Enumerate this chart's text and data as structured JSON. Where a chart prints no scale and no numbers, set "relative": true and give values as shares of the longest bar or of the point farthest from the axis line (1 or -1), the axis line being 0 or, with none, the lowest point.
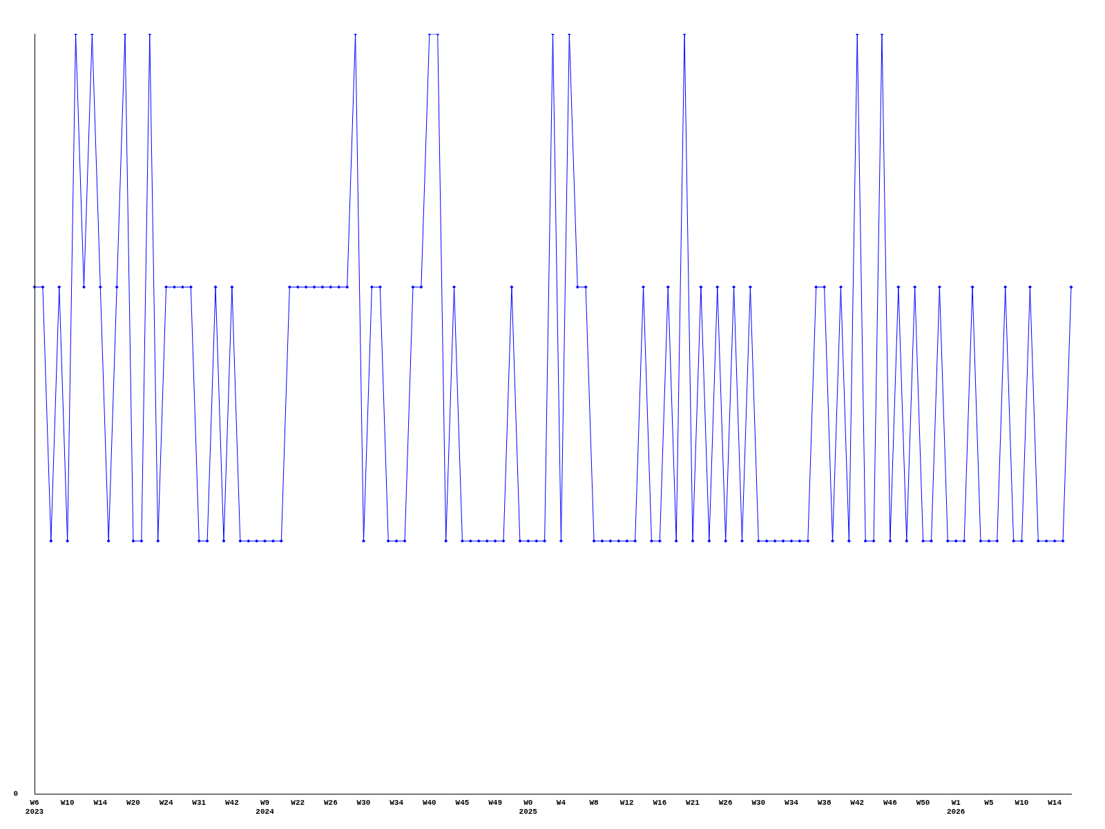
{
  "chart_data": {
    "type": "line",
    "relative": true,
    "color": "#0000ff",
    "marker": "diamond",
    "grid": false,
    "legend": false,
    "annotations": [
      "0"
    ],
    "categories": [
      "W6\n2023",
      null,
      null,
      null,
      "W10",
      null,
      null,
      null,
      "W14",
      null,
      null,
      null,
      "W20",
      null,
      null,
      null,
      "W24",
      null,
      null,
      null,
      "W31",
      null,
      null,
      null,
      "W42",
      null,
      null,
      null,
      "W9\n2024",
      null,
      null,
      null,
      "W22",
      null,
      null,
      null,
      "W26",
      null,
      null,
      null,
      "W30",
      null,
      null,
      null,
      "W34",
      null,
      null,
      null,
      "W40",
      null,
      null,
      null,
      "W45",
      null,
      null,
      null,
      "W49",
      null,
      null,
      null,
      "W0\n2025",
      null,
      null,
      null,
      "W4",
      null,
      null,
      null,
      "W8",
      null,
      null,
      null,
      "W12",
      null,
      null,
      null,
      "W16",
      null,
      null,
      null,
      "W21",
      null,
      null,
      null,
      "W26",
      null,
      null,
      null,
      "W30",
      null,
      null,
      null,
      "W34",
      null,
      null,
      null,
      "W38",
      null,
      null,
      null,
      "W42",
      null,
      null,
      null,
      "W46",
      null,
      null,
      null,
      "W50",
      null,
      null,
      null,
      "W1\n2026",
      null,
      null,
      null,
      "W5",
      null,
      null,
      null,
      "W10",
      null,
      null,
      null,
      "W14",
      null,
      null
    ],
    "values": [
      0.667,
      0.667,
      0.333,
      0.667,
      0.333,
      1,
      0.667,
      1,
      0.667,
      0.333,
      0.667,
      1,
      0.333,
      0.333,
      1,
      0.333,
      0.667,
      0.667,
      0.667,
      0.667,
      0.333,
      0.333,
      0.667,
      0.333,
      0.667,
      0.333,
      0.333,
      0.333,
      0.333,
      0.333,
      0.333,
      0.667,
      0.667,
      0.667,
      0.667,
      0.667,
      0.667,
      0.667,
      0.667,
      1,
      0.333,
      0.667,
      0.667,
      0.333,
      0.333,
      0.333,
      0.667,
      0.667,
      1,
      1,
      0.333,
      0.667,
      0.333,
      0.333,
      0.333,
      0.333,
      0.333,
      0.333,
      0.667,
      0.333,
      0.333,
      0.333,
      0.333,
      1,
      0.333,
      1,
      0.667,
      0.667,
      0.333,
      0.333,
      0.333,
      0.333,
      0.333,
      0.333,
      0.667,
      0.333,
      0.333,
      0.667,
      0.333,
      1,
      0.333,
      0.667,
      0.333,
      0.667,
      0.333,
      0.667,
      0.333,
      0.667,
      0.333,
      0.333,
      0.333,
      0.333,
      0.333,
      0.333,
      0.333,
      0.667,
      0.667,
      0.333,
      0.667,
      0.333,
      1,
      0.333,
      0.333,
      1,
      0.333,
      0.667,
      0.333,
      0.667,
      0.333,
      0.333,
      0.667,
      0.333,
      0.333,
      0.333,
      0.667,
      0.333,
      0.333,
      0.333,
      0.667,
      0.333,
      0.333,
      0.667,
      0.333,
      0.333,
      0.333,
      0.333,
      0.667
    ]
  }
}
